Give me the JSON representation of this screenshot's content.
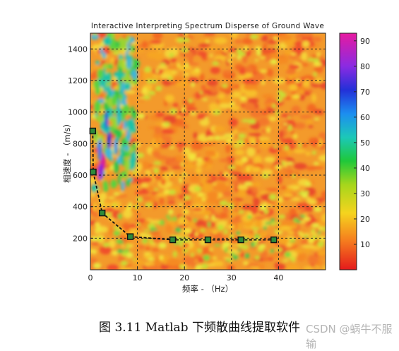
{
  "chart_data": {
    "type": "heatmap",
    "title": "Interactive Interpreting Spectrum Disperse of Ground Wave",
    "xlabel": "频率 - （Hz）",
    "ylabel": "相速度 - （m/s）",
    "xlim": [
      0,
      50
    ],
    "ylim": [
      0,
      1500
    ],
    "x_ticks": [
      0,
      10,
      20,
      30,
      40
    ],
    "y_ticks": [
      200,
      400,
      600,
      800,
      1000,
      1200,
      1400
    ],
    "grid": true,
    "colorbar": {
      "ticks": [
        10,
        20,
        30,
        40,
        50,
        60,
        70,
        80,
        90
      ],
      "range": [
        0,
        93
      ]
    },
    "dispersion_curve": {
      "x": [
        0.5,
        0.6,
        2.5,
        8.5,
        17.5,
        25,
        32,
        39
      ],
      "y": [
        880,
        620,
        360,
        210,
        190,
        190,
        190,
        190
      ]
    },
    "colors": {
      "background_warm": "#f5a623",
      "curve": "#111111",
      "marker_fill": "#2e8b3a"
    }
  },
  "caption": "图 3.11 Matlab 下频散曲线提取软件",
  "watermark": "CSDN @蜗牛不服输"
}
